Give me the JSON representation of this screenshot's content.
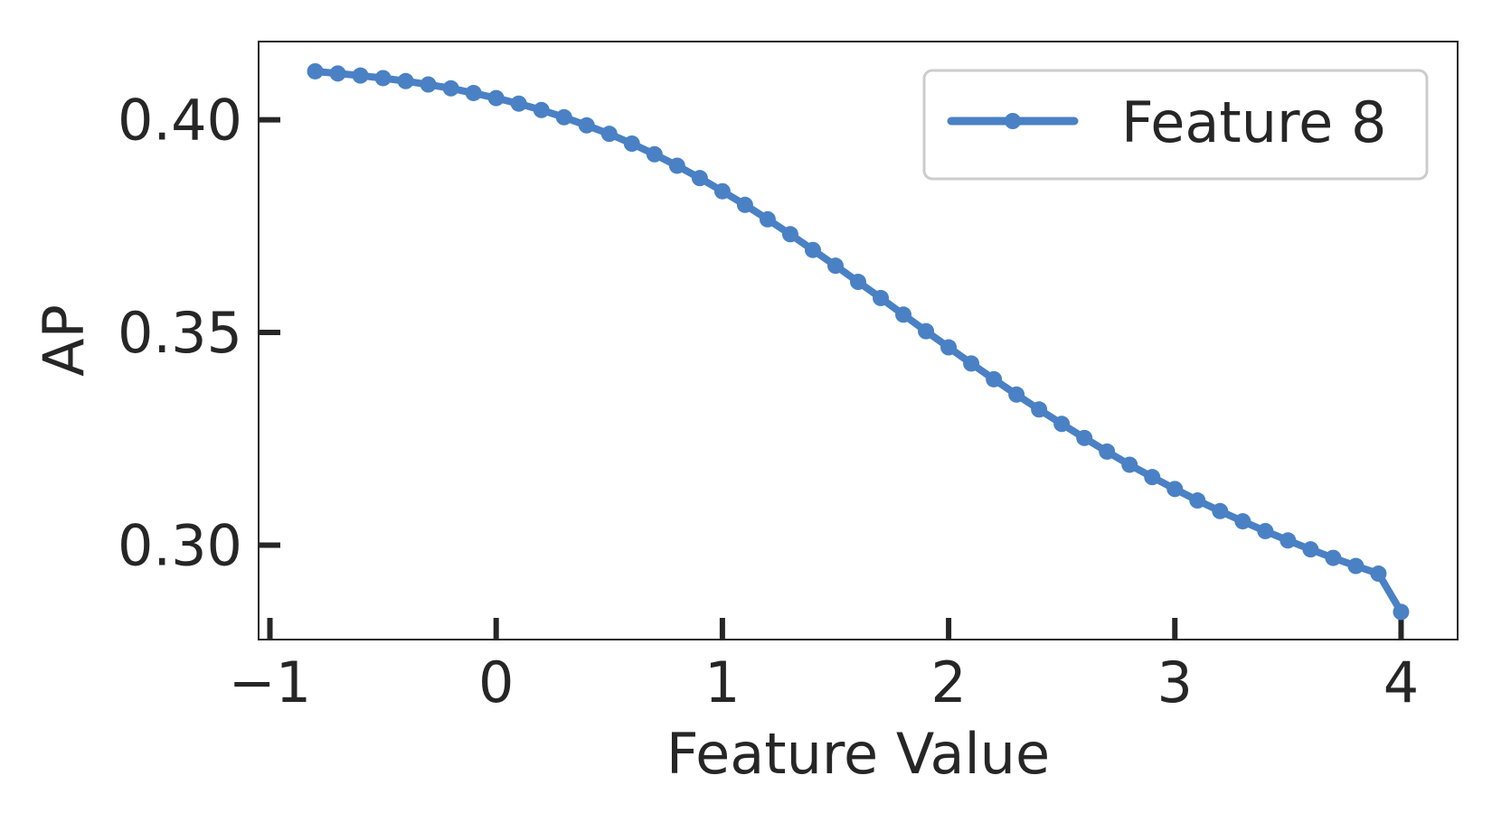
{
  "chart_data": {
    "type": "line",
    "title": "",
    "xlabel": "Feature Value",
    "ylabel": "AP",
    "xlim": [
      -1.05,
      4.25
    ],
    "ylim": [
      0.2778,
      0.4184
    ],
    "xticks": [
      -1,
      0,
      1,
      2,
      3,
      4
    ],
    "xtick_labels": [
      "−1",
      "0",
      "1",
      "2",
      "3",
      "4"
    ],
    "yticks": [
      0.3,
      0.35,
      0.4
    ],
    "ytick_labels": [
      "0.30",
      "0.35",
      "0.40"
    ],
    "grid": false,
    "legend_position": "top-right",
    "series": [
      {
        "name": "Feature 8",
        "color": "#4a81c4",
        "x": [
          -0.8,
          -0.7,
          -0.6,
          -0.5,
          -0.4,
          -0.3,
          -0.2,
          -0.1,
          0.0,
          0.1,
          0.2,
          0.3,
          0.4,
          0.5,
          0.6,
          0.7,
          0.8,
          0.9,
          1.0,
          1.1,
          1.2,
          1.3,
          1.4,
          1.5,
          1.6,
          1.7,
          1.8,
          1.9,
          2.0,
          2.1,
          2.2,
          2.3,
          2.4,
          2.5,
          2.6,
          2.7,
          2.8,
          2.9,
          3.0,
          3.1,
          3.2,
          3.3,
          3.4,
          3.5,
          3.6,
          3.7,
          3.8,
          3.9,
          4.0
        ],
        "y": [
          0.4114,
          0.4109,
          0.4104,
          0.4098,
          0.4091,
          0.4083,
          0.4074,
          0.4063,
          0.4051,
          0.4038,
          0.4023,
          0.4006,
          0.3987,
          0.3967,
          0.3944,
          0.3919,
          0.3892,
          0.3863,
          0.3832,
          0.38,
          0.3766,
          0.3731,
          0.3694,
          0.3657,
          0.3619,
          0.3581,
          0.3542,
          0.3503,
          0.3465,
          0.3427,
          0.339,
          0.3354,
          0.3319,
          0.3285,
          0.3252,
          0.322,
          0.3189,
          0.316,
          0.3132,
          0.3105,
          0.308,
          0.3056,
          0.3033,
          0.3011,
          0.299,
          0.297,
          0.2951,
          0.2933,
          0.2843
        ]
      }
    ]
  }
}
